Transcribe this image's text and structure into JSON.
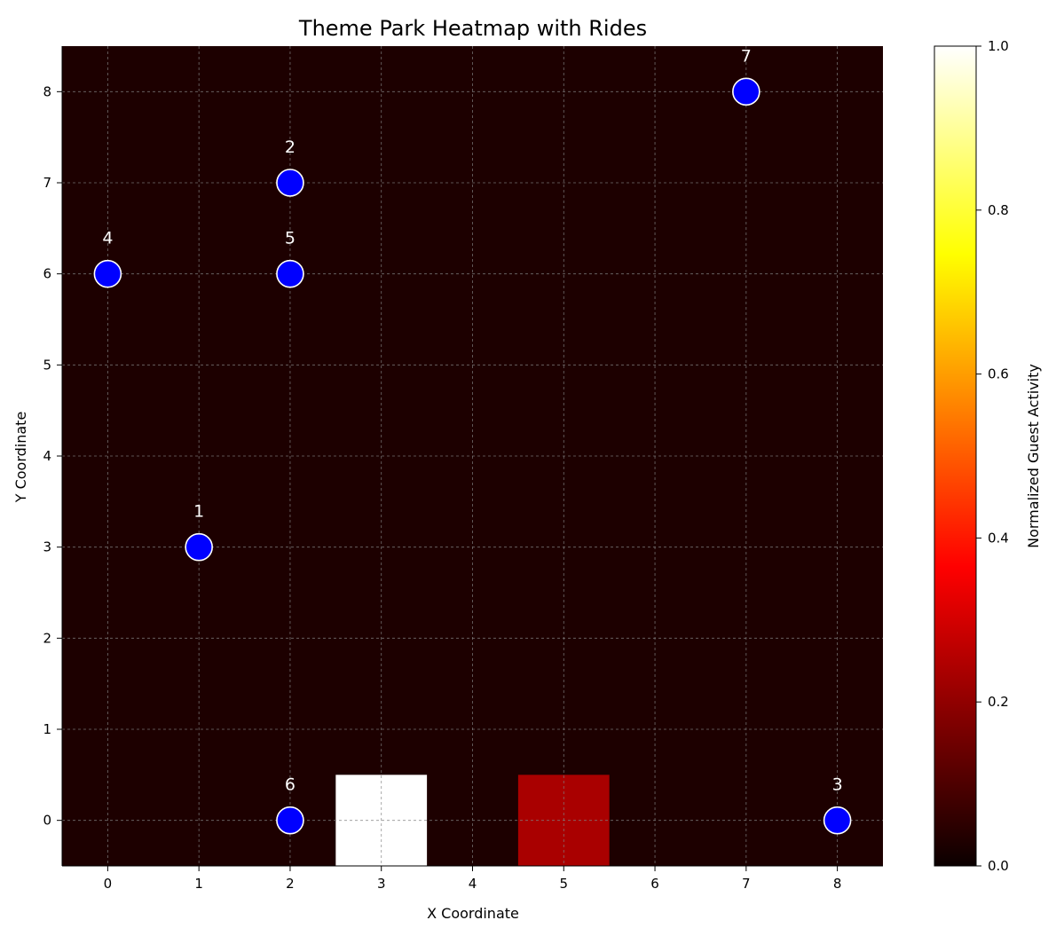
{
  "chart_data": {
    "type": "heatmap",
    "title": "Theme Park Heatmap with Rides",
    "xlabel": "X Coordinate",
    "ylabel": "Y Coordinate",
    "colorbar_label": "Normalized Guest Activity",
    "colormap": "hot",
    "xlim": [
      -0.5,
      8.5
    ],
    "ylim": [
      -0.5,
      8.5
    ],
    "x_ticks": [
      0,
      1,
      2,
      3,
      4,
      5,
      6,
      7,
      8
    ],
    "y_ticks": [
      0,
      1,
      2,
      3,
      4,
      5,
      6,
      7,
      8
    ],
    "colorbar_range": [
      0.0,
      1.0
    ],
    "colorbar_ticks": [
      "0.0",
      "0.2",
      "0.4",
      "0.6",
      "0.8",
      "1.0"
    ],
    "background_value": 0.0,
    "hot_cells": [
      {
        "x": 3,
        "y": 0,
        "value": 1.0
      },
      {
        "x": 5,
        "y": 0,
        "value": 0.2
      }
    ],
    "rides": [
      {
        "label": "1",
        "x": 1,
        "y": 3
      },
      {
        "label": "2",
        "x": 2,
        "y": 7
      },
      {
        "label": "3",
        "x": 8,
        "y": 0
      },
      {
        "label": "4",
        "x": 0,
        "y": 6
      },
      {
        "label": "5",
        "x": 2,
        "y": 6
      },
      {
        "label": "6",
        "x": 2,
        "y": 0
      },
      {
        "label": "7",
        "x": 7,
        "y": 8
      }
    ],
    "ride_marker_color": "#0000ff",
    "ride_edge_color": "#ffffff",
    "grid": "dashed-grey-gridlines"
  }
}
